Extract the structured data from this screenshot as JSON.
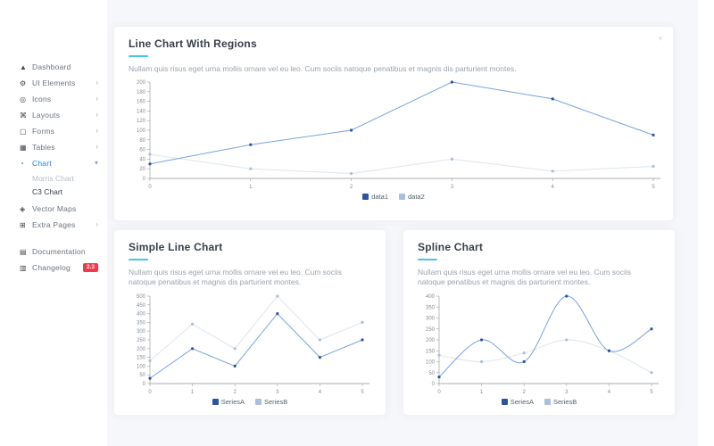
{
  "colors": {
    "accent": "#41c8e4",
    "active_link": "#1a82e2",
    "badge": "#f1394b",
    "primary_line": "#7aa3da",
    "primary_point": "#2b559e",
    "secondary_line": "#dde6ed",
    "secondary_point": "#a9c0da",
    "content_bg": "#f6f7fa"
  },
  "icons": {
    "dashboard": "▲",
    "ui_elements": "⚙",
    "icons_item": "◎",
    "layouts": "⌘",
    "forms": "▢",
    "tables": "▦",
    "chart": "◔",
    "vector_maps": "◈",
    "extra_pages": "⊞",
    "documentation": "▤",
    "changelog": "▥",
    "chevron_right": "›",
    "chevron_down": "▾",
    "card_options": "▾"
  },
  "sidebar": {
    "items": [
      {
        "label": "Dashboard"
      },
      {
        "label": "UI Elements"
      },
      {
        "label": "Icons"
      },
      {
        "label": "Layouts"
      },
      {
        "label": "Forms"
      },
      {
        "label": "Tables"
      },
      {
        "label": "Chart",
        "active": true,
        "children": [
          {
            "label": "Morris Chart",
            "active": false
          },
          {
            "label": "C3 Chart",
            "active": true
          }
        ]
      },
      {
        "label": "Vector Maps"
      },
      {
        "label": "Extra Pages"
      },
      {
        "label": "Documentation"
      },
      {
        "label": "Changelog",
        "badge": "2.3"
      }
    ]
  },
  "cards": [
    {
      "title": "Line Chart With Regions",
      "description": "Nullam quis risus eget urna mollis ornare vel eu leo. Cum sociis natoque penatibus et magnis dis parturient montes."
    },
    {
      "title": "Simple Line Chart",
      "description": "Nullam quis risus eget urna mollis ornare vel eu leo. Cum sociis natoque penatibus et magnis dis parturient montes."
    },
    {
      "title": "Spline Chart",
      "description": "Nullam quis risus eget urna mollis ornare vel eu leo. Cum sociis natoque penatibus et magnis dis parturient montes."
    }
  ],
  "chart_data": [
    {
      "type": "line",
      "title": "Line Chart With Regions",
      "x": [
        0,
        1,
        2,
        3,
        4,
        5
      ],
      "series": [
        {
          "name": "data1",
          "values": [
            30,
            70,
            100,
            200,
            165,
            90
          ]
        },
        {
          "name": "data2",
          "values": [
            50,
            20,
            10,
            40,
            15,
            25
          ]
        }
      ],
      "xlabel": "",
      "ylabel": "",
      "ylim": [
        0,
        200
      ],
      "ystep": 20,
      "grid": false,
      "legend_position": "bottom"
    },
    {
      "type": "line",
      "title": "Simple Line Chart",
      "x": [
        0,
        1,
        2,
        3,
        4,
        5
      ],
      "series": [
        {
          "name": "SeriesA",
          "values": [
            30,
            200,
            100,
            400,
            150,
            250
          ]
        },
        {
          "name": "SeriesB",
          "values": [
            130,
            340,
            200,
            500,
            250,
            350
          ]
        }
      ],
      "xlabel": "",
      "ylabel": "",
      "ylim": [
        0,
        500
      ],
      "ystep": 50,
      "grid": false,
      "legend_position": "bottom"
    },
    {
      "type": "spline",
      "title": "Spline Chart",
      "x": [
        0,
        1,
        2,
        3,
        4,
        5
      ],
      "series": [
        {
          "name": "SeriesA",
          "values": [
            30,
            200,
            100,
            400,
            150,
            250
          ]
        },
        {
          "name": "SeriesB",
          "values": [
            130,
            100,
            140,
            200,
            150,
            50
          ]
        }
      ],
      "xlabel": "",
      "ylabel": "",
      "ylim": [
        0,
        400
      ],
      "ystep": 50,
      "grid": false,
      "legend_position": "bottom"
    }
  ]
}
